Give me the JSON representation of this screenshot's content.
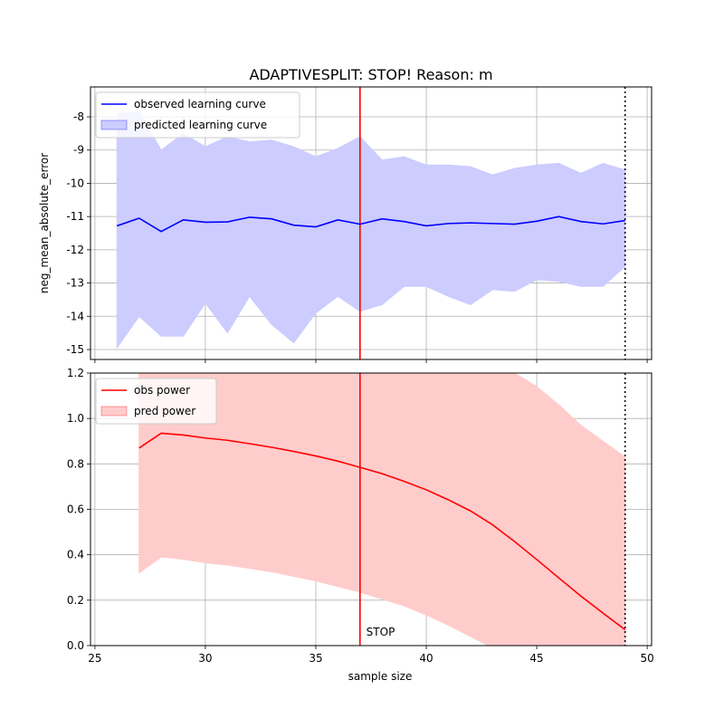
{
  "title": "ADAPTIVESPLIT: STOP!  Reason: m",
  "chart_data": [
    {
      "type": "line",
      "panel": "top",
      "ylabel": "neg_mean_absolute_error",
      "xlim": [
        24.8,
        50.2
      ],
      "ylim": [
        -15.3,
        -7.1
      ],
      "yticks": [
        -15,
        -14,
        -13,
        -12,
        -11,
        -10,
        -9,
        -8
      ],
      "xticks": [
        25,
        30,
        35,
        40,
        45,
        50
      ],
      "grid": true,
      "legend_position": "top-left",
      "colors": {
        "line": "#0000ff",
        "band": "#ccccff"
      },
      "series": [
        {
          "name": "observed learning curve",
          "kind": "line",
          "x": [
            26,
            27,
            28,
            29,
            30,
            31,
            32,
            33,
            34,
            35,
            36,
            37,
            38,
            39,
            40,
            41,
            42,
            43,
            44,
            45,
            46,
            47,
            48,
            49
          ],
          "y": [
            -11.28,
            -11.05,
            -11.45,
            -11.1,
            -11.17,
            -11.16,
            -11.02,
            -11.07,
            -11.26,
            -11.31,
            -11.1,
            -11.23,
            -11.07,
            -11.15,
            -11.28,
            -11.21,
            -11.19,
            -11.21,
            -11.23,
            -11.14,
            -11.0,
            -11.15,
            -11.22,
            -11.12
          ]
        },
        {
          "name": "predicted learning curve",
          "kind": "band",
          "x": [
            26,
            27,
            28,
            29,
            30,
            31,
            32,
            33,
            34,
            35,
            36,
            37,
            38,
            39,
            40,
            41,
            42,
            43,
            44,
            45,
            46,
            47,
            48,
            49
          ],
          "upper": [
            -7.9,
            -7.85,
            -9.0,
            -8.5,
            -8.9,
            -8.6,
            -8.75,
            -8.7,
            -8.9,
            -9.2,
            -8.95,
            -8.6,
            -9.3,
            -9.2,
            -9.45,
            -9.45,
            -9.5,
            -9.75,
            -9.55,
            -9.45,
            -9.4,
            -9.7,
            -9.4,
            -9.6
          ],
          "lower": [
            -14.95,
            -14.0,
            -14.6,
            -14.6,
            -13.6,
            -14.5,
            -13.4,
            -14.25,
            -14.8,
            -13.9,
            -13.4,
            -13.85,
            -13.65,
            -13.1,
            -13.1,
            -13.4,
            -13.65,
            -13.2,
            -13.25,
            -12.9,
            -12.95,
            -13.1,
            -13.1,
            -12.5
          ]
        }
      ],
      "vlines": [
        {
          "x": 37,
          "style": "solid",
          "color": "#ff0000"
        },
        {
          "x": 49,
          "style": "dotted",
          "color": "#000000"
        }
      ]
    },
    {
      "type": "line",
      "panel": "bottom",
      "xlabel": "sample size",
      "xlim": [
        24.8,
        50.2
      ],
      "ylim": [
        0.0,
        1.2
      ],
      "yticks": [
        "0.0",
        "0.2",
        "0.4",
        "0.6",
        "0.8",
        "1.0",
        "1.2"
      ],
      "xticks": [
        25,
        30,
        35,
        40,
        45,
        50
      ],
      "grid": true,
      "legend_position": "top-left",
      "colors": {
        "line": "#ff0000",
        "band": "#ffcccc"
      },
      "series": [
        {
          "name": "obs power",
          "kind": "line",
          "x": [
            27,
            28,
            29,
            30,
            31,
            32,
            33,
            34,
            35,
            36,
            37,
            38,
            39,
            40,
            41,
            42,
            43,
            44,
            45,
            46,
            47,
            48,
            49
          ],
          "y": [
            0.87,
            0.935,
            0.927,
            0.914,
            0.904,
            0.889,
            0.873,
            0.855,
            0.835,
            0.812,
            0.785,
            0.757,
            0.723,
            0.686,
            0.642,
            0.593,
            0.532,
            0.458,
            0.379,
            0.298,
            0.218,
            0.143,
            0.07
          ]
        },
        {
          "name": "pred power",
          "kind": "band",
          "x": [
            27,
            28,
            29,
            30,
            31,
            32,
            33,
            34,
            35,
            36,
            37,
            38,
            39,
            40,
            41,
            42,
            43,
            44,
            45,
            46,
            47,
            48,
            49
          ],
          "upper": [
            1.3,
            1.3,
            1.3,
            1.3,
            1.3,
            1.3,
            1.3,
            1.3,
            1.3,
            1.3,
            1.3,
            1.3,
            1.3,
            1.3,
            1.3,
            1.3,
            1.3,
            1.2,
            1.14,
            1.06,
            0.97,
            0.9,
            0.83
          ],
          "lower": [
            0.32,
            0.39,
            0.38,
            0.365,
            0.355,
            0.34,
            0.325,
            0.305,
            0.285,
            0.26,
            0.235,
            0.205,
            0.175,
            0.135,
            0.09,
            0.04,
            -0.01,
            -0.06,
            -0.11,
            -0.17,
            -0.24,
            -0.3,
            -0.36
          ]
        }
      ],
      "vlines": [
        {
          "x": 37,
          "style": "solid",
          "color": "#ff0000"
        },
        {
          "x": 49,
          "style": "dotted",
          "color": "#000000"
        }
      ],
      "annotations": [
        {
          "text": "STOP",
          "x": 37.2,
          "y": 0.06
        }
      ]
    }
  ]
}
